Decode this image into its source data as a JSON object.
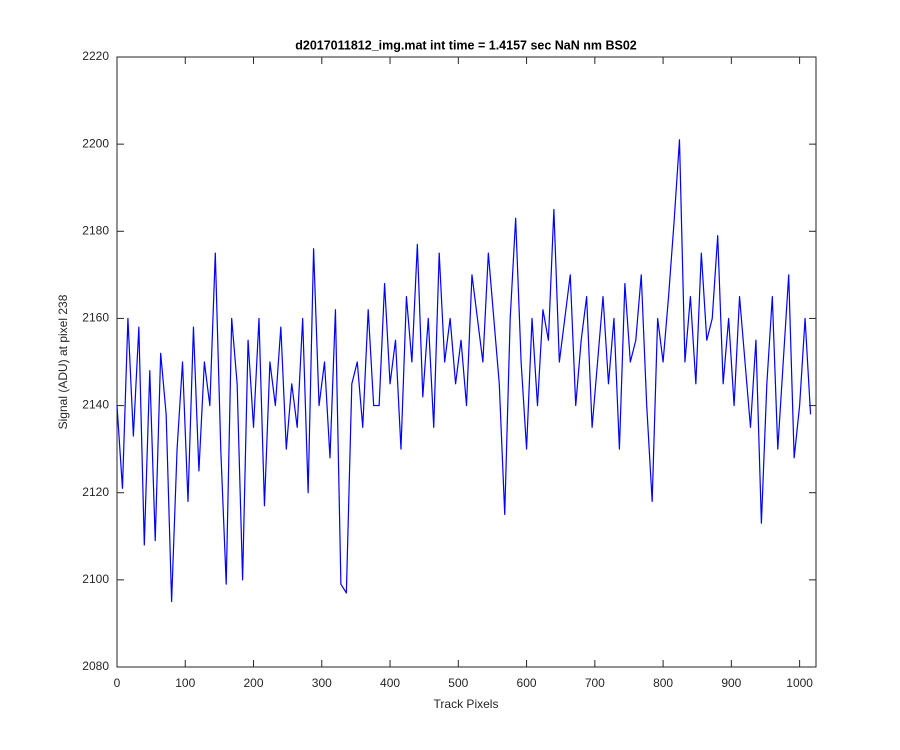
{
  "chart_data": {
    "type": "line",
    "title": "d2017011812_img.mat int time = 1.4157 sec  NaN nm BS02",
    "xlabel": "Track Pixels",
    "ylabel": "Signal (ADU) at pixel 238",
    "xlim": [
      0,
      1024
    ],
    "xticks": [
      0,
      100,
      200,
      300,
      400,
      500,
      600,
      700,
      800,
      900,
      1000
    ],
    "ylim": [
      2080,
      2220
    ],
    "yticks": [
      2080,
      2100,
      2120,
      2140,
      2160,
      2180,
      2200,
      2220
    ],
    "grid": false,
    "series": [
      {
        "color": "#0000ff",
        "x": [
          0,
          8,
          16,
          24,
          32,
          40,
          48,
          56,
          64,
          72,
          80,
          88,
          96,
          104,
          112,
          120,
          128,
          136,
          144,
          152,
          160,
          168,
          176,
          184,
          192,
          200,
          208,
          216,
          224,
          232,
          240,
          248,
          256,
          264,
          272,
          280,
          288,
          296,
          304,
          312,
          320,
          328,
          336,
          344,
          352,
          360,
          368,
          376,
          384,
          392,
          400,
          408,
          416,
          424,
          432,
          440,
          448,
          456,
          464,
          472,
          480,
          488,
          496,
          504,
          512,
          520,
          528,
          536,
          544,
          552,
          560,
          568,
          576,
          584,
          592,
          600,
          608,
          616,
          624,
          632,
          640,
          648,
          656,
          664,
          672,
          680,
          688,
          696,
          704,
          712,
          720,
          728,
          736,
          744,
          752,
          760,
          768,
          776,
          784,
          792,
          800,
          808,
          816,
          824,
          832,
          840,
          848,
          856,
          864,
          872,
          880,
          888,
          896,
          904,
          912,
          920,
          928,
          936,
          944,
          952,
          960,
          968,
          976,
          984,
          992,
          1000,
          1008,
          1016
        ],
        "values": [
          2140,
          2121,
          2160,
          2133,
          2158,
          2108,
          2148,
          2109,
          2152,
          2138,
          2095,
          2130,
          2150,
          2118,
          2158,
          2125,
          2150,
          2140,
          2175,
          2130,
          2099,
          2160,
          2145,
          2100,
          2155,
          2135,
          2160,
          2117,
          2150,
          2140,
          2158,
          2130,
          2145,
          2135,
          2160,
          2120,
          2176,
          2140,
          2150,
          2128,
          2162,
          2099,
          2097,
          2145,
          2150,
          2135,
          2162,
          2140,
          2140,
          2168,
          2145,
          2155,
          2130,
          2165,
          2150,
          2177,
          2142,
          2160,
          2135,
          2175,
          2150,
          2160,
          2145,
          2155,
          2140,
          2170,
          2160,
          2150,
          2175,
          2160,
          2145,
          2115,
          2160,
          2183,
          2150,
          2130,
          2160,
          2140,
          2162,
          2155,
          2185,
          2150,
          2160,
          2170,
          2140,
          2155,
          2165,
          2135,
          2150,
          2165,
          2145,
          2160,
          2130,
          2168,
          2150,
          2155,
          2170,
          2140,
          2118,
          2160,
          2150,
          2165,
          2182,
          2201,
          2150,
          2165,
          2145,
          2175,
          2155,
          2160,
          2179,
          2145,
          2160,
          2140,
          2165,
          2150,
          2135,
          2155,
          2113,
          2145,
          2165,
          2130,
          2150,
          2170,
          2128,
          2140,
          2160,
          2138
        ]
      }
    ]
  }
}
